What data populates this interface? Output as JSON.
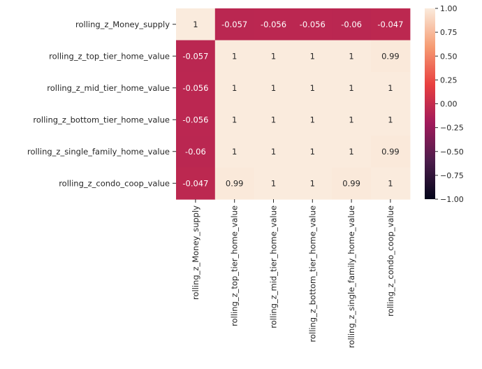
{
  "chart_data": {
    "type": "heatmap",
    "title": "",
    "xlabel": "",
    "ylabel": "",
    "rows": [
      "rolling_z_Money_supply",
      "rolling_z_top_tier_home_value",
      "rolling_z_mid_tier_home_value",
      "rolling_z_bottom_tier_home_value",
      "rolling_z_single_family_home_value",
      "rolling_z_condo_coop_value"
    ],
    "columns": [
      "rolling_z_Money_supply",
      "rolling_z_top_tier_home_value",
      "rolling_z_mid_tier_home_value",
      "rolling_z_bottom_tier_home_value",
      "rolling_z_single_family_home_value",
      "rolling_z_condo_coop_value"
    ],
    "values": [
      [
        1,
        -0.057,
        -0.056,
        -0.056,
        -0.06,
        -0.047
      ],
      [
        -0.057,
        1,
        1,
        1,
        1,
        0.99
      ],
      [
        -0.056,
        1,
        1,
        1,
        1,
        1
      ],
      [
        -0.056,
        1,
        1,
        1,
        1,
        1
      ],
      [
        -0.06,
        1,
        1,
        1,
        1,
        0.99
      ],
      [
        -0.047,
        0.99,
        1,
        1,
        0.99,
        1
      ]
    ],
    "value_range": [
      -1,
      1
    ],
    "colorbar": {
      "ticks": [
        1.0,
        0.75,
        0.5,
        0.25,
        0.0,
        -0.25,
        -0.5,
        -0.75,
        -1.0
      ],
      "tick_labels": [
        "1.00",
        "0.75",
        "0.50",
        "0.25",
        "0.00",
        "−0.25",
        "−0.50",
        "−0.75",
        "−1.00"
      ]
    },
    "colormap": "rocket",
    "colormap_stops": [
      "#03051a",
      "#4c1d4b",
      "#a11a5b",
      "#e83f3f",
      "#f69c73",
      "#faebdd"
    ],
    "annotation_light_color": "#ffffff",
    "annotation_dark_color": "#262626"
  }
}
